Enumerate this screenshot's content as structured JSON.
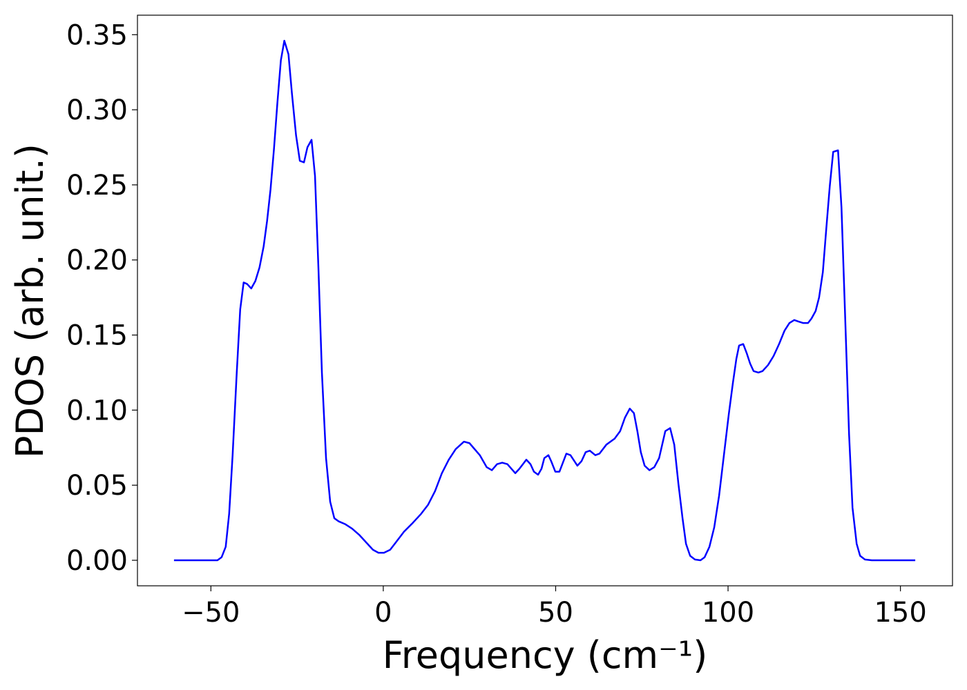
{
  "chart_data": {
    "type": "line",
    "xlabel": "Frequency (cm⁻¹)",
    "ylabel": "PDOS (arb. unit.)",
    "xlim": [
      -71.3,
      165.1
    ],
    "ylim": [
      -0.017,
      0.363
    ],
    "xticks": [
      {
        "value": -50,
        "label": "−50"
      },
      0,
      50,
      100,
      150
    ],
    "yticks": [
      {
        "value": 0,
        "label": "0.00"
      },
      {
        "value": 0.05,
        "label": "0.05"
      },
      {
        "value": 0.1,
        "label": "0.10"
      },
      {
        "value": 0.15,
        "label": "0.15"
      },
      {
        "value": 0.2,
        "label": "0.20"
      },
      {
        "value": 0.25,
        "label": "0.25"
      },
      {
        "value": 0.3,
        "label": "0.30"
      },
      {
        "value": 0.35,
        "label": "0.35"
      }
    ],
    "grid": false,
    "x": [
      -60.7,
      -48.1,
      -46.9,
      -45.7,
      -44.7,
      -43.7,
      -42.5,
      -41.5,
      -40.5,
      -39.5,
      -38.3,
      -37.1,
      -35.9,
      -34.7,
      -33.7,
      -32.7,
      -31.7,
      -30.7,
      -29.7,
      -28.7,
      -27.5,
      -26.5,
      -25.3,
      -24.2,
      -23,
      -22,
      -20.8,
      -19.8,
      -18.8,
      -17.8,
      -16.6,
      -15.4,
      -14.2,
      -13,
      -11,
      -9,
      -7,
      -5,
      -3,
      -1.4,
      0.2,
      2,
      4,
      6,
      8.6,
      11,
      13,
      15,
      17,
      19,
      21,
      23.4,
      25,
      28,
      30,
      31.5,
      33,
      34.5,
      36,
      38.3,
      39.5,
      41.5,
      42.7,
      43.7,
      44.9,
      45.9,
      46.7,
      47.9,
      48.7,
      49.9,
      51.1,
      53.1,
      54.3,
      56.3,
      57.5,
      58.7,
      59.9,
      61.5,
      62.7,
      64.7,
      67.1,
      68.7,
      70.1,
      71.5,
      72.7,
      73.7,
      74.7,
      75.8,
      77.2,
      78.6,
      80,
      81.8,
      83.2,
      84.4,
      85.6,
      86.8,
      87.8,
      89,
      90.4,
      92,
      93.2,
      94.6,
      96,
      97.4,
      98.8,
      100.2,
      101.4,
      102.4,
      103.2,
      104.4,
      105.4,
      106.4,
      107.4,
      108.8,
      110,
      111.6,
      113.2,
      114.8,
      116.4,
      117.8,
      119.2,
      120.4,
      121.8,
      123.2,
      124.2,
      125.4,
      126.4,
      127.5,
      128.5,
      129.5,
      130.5,
      131.9,
      132.9,
      134.1,
      135.1,
      136.1,
      137.3,
      138.3,
      139.7,
      141.7,
      154.3
    ],
    "series": [
      {
        "name": "PDOS",
        "color": "#0000ff",
        "values": [
          0,
          0,
          0.002,
          0.009,
          0.031,
          0.07,
          0.125,
          0.167,
          0.185,
          0.184,
          0.181,
          0.186,
          0.195,
          0.209,
          0.226,
          0.247,
          0.274,
          0.305,
          0.333,
          0.346,
          0.337,
          0.311,
          0.283,
          0.266,
          0.265,
          0.275,
          0.28,
          0.256,
          0.194,
          0.125,
          0.068,
          0.039,
          0.028,
          0.026,
          0.024,
          0.021,
          0.017,
          0.012,
          0.007,
          0.005,
          0.005,
          0.007,
          0.013,
          0.019,
          0.025,
          0.031,
          0.037,
          0.046,
          0.058,
          0.067,
          0.074,
          0.079,
          0.078,
          0.07,
          0.062,
          0.06,
          0.064,
          0.065,
          0.064,
          0.058,
          0.061,
          0.067,
          0.064,
          0.059,
          0.057,
          0.061,
          0.068,
          0.07,
          0.066,
          0.059,
          0.059,
          0.071,
          0.07,
          0.063,
          0.066,
          0.072,
          0.073,
          0.07,
          0.071,
          0.077,
          0.081,
          0.086,
          0.095,
          0.101,
          0.098,
          0.086,
          0.072,
          0.063,
          0.06,
          0.062,
          0.068,
          0.086,
          0.088,
          0.077,
          0.051,
          0.028,
          0.011,
          0.003,
          0.0005,
          0,
          0.002,
          0.009,
          0.022,
          0.043,
          0.07,
          0.097,
          0.118,
          0.134,
          0.143,
          0.144,
          0.138,
          0.131,
          0.126,
          0.125,
          0.126,
          0.13,
          0.136,
          0.144,
          0.153,
          0.158,
          0.16,
          0.159,
          0.158,
          0.158,
          0.161,
          0.166,
          0.175,
          0.192,
          0.221,
          0.249,
          0.272,
          0.273,
          0.235,
          0.153,
          0.084,
          0.035,
          0.011,
          0.003,
          0.0005,
          0,
          0
        ]
      }
    ]
  }
}
